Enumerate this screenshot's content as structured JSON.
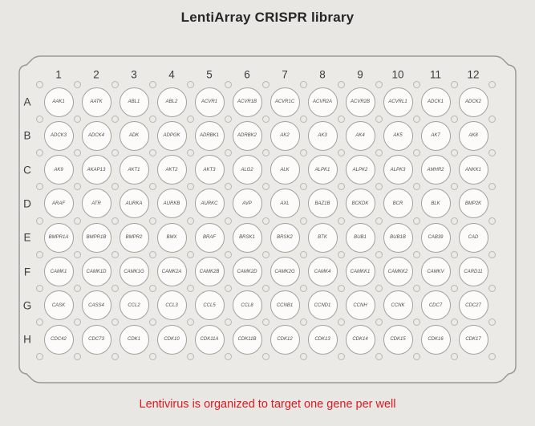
{
  "title": "LentiArray CRISPR library",
  "caption": "Lentivirus is organized to target one gene per well",
  "colors": {
    "background": "#e8e7e4",
    "plate_fill": "#ebeae7",
    "plate_border": "#999996",
    "caption_red": "#e1191f"
  },
  "plate": {
    "column_labels": [
      "1",
      "2",
      "3",
      "4",
      "5",
      "6",
      "7",
      "8",
      "9",
      "10",
      "11",
      "12"
    ],
    "row_labels": [
      "A",
      "B",
      "C",
      "D",
      "E",
      "F",
      "G",
      "H"
    ],
    "wells": [
      [
        "AAK1",
        "AATK",
        "ABL1",
        "ABL2",
        "ACVR1",
        "ACVR1B",
        "ACVR1C",
        "ACVR2A",
        "ACVR2B",
        "ACVRL1",
        "ADCK1",
        "ADCK2"
      ],
      [
        "ADCK3",
        "ADCK4",
        "ADK",
        "ADPGK",
        "ADRBK1",
        "ADRBK2",
        "AK2",
        "AK3",
        "AK4",
        "AK5",
        "AK7",
        "AK8"
      ],
      [
        "AK9",
        "AKAP13",
        "AKT1",
        "AKT2",
        "AKT3",
        "ALG2",
        "ALK",
        "ALPK1",
        "ALPK2",
        "ALPK3",
        "AMHR2",
        "ANKK1"
      ],
      [
        "ARAF",
        "ATR",
        "AURKA",
        "AURKB",
        "AURKC",
        "AVP",
        "AXL",
        "BAZ1B",
        "BCKDK",
        "BCR",
        "BLK",
        "BMP2K"
      ],
      [
        "BMPR1A",
        "BMPR1B",
        "BMPR2",
        "BMX",
        "BRAF",
        "BRSK1",
        "BRSK2",
        "BTK",
        "BUB1",
        "BUB1B",
        "CAB39",
        "CAD"
      ],
      [
        "CAMK1",
        "CAMK1D",
        "CAMK1G",
        "CAMK2A",
        "CAMK2B",
        "CAMK2D",
        "CAMK2G",
        "CAMK4",
        "CAMKK1",
        "CAMKK2",
        "CAMKV",
        "CARD11"
      ],
      [
        "CASK",
        "CASS4",
        "CCL2",
        "CCL3",
        "CCL5",
        "CCL8",
        "CCNB1",
        "CCND1",
        "CCNH",
        "CCNK",
        "CDC7",
        "CDC27"
      ],
      [
        "CDC42",
        "CDC73",
        "CDK1",
        "CDK10",
        "CDK11A",
        "CDK11B",
        "CDK12",
        "CDK13",
        "CDK14",
        "CDK15",
        "CDK16",
        "CDK17"
      ]
    ]
  }
}
